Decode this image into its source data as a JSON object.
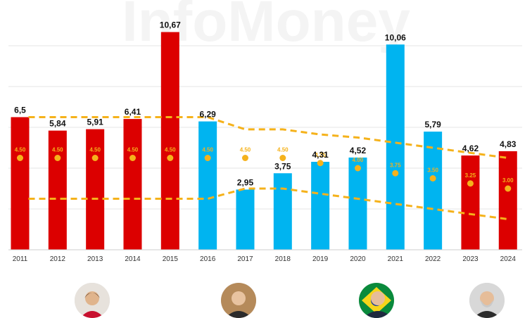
{
  "watermark": "InfoMoney",
  "colors": {
    "red": "#dc0000",
    "blue": "#00b4f0",
    "target": "#f5b21b",
    "grid": "#e6e6e6"
  },
  "chart_data": {
    "type": "bar",
    "title": "",
    "xlabel": "",
    "ylabel": "",
    "ylim": [
      0,
      11.4
    ],
    "grid": true,
    "categories": [
      "2011",
      "2012",
      "2013",
      "2014",
      "2015",
      "2016",
      "2017",
      "2018",
      "2019",
      "2020",
      "2021",
      "2022",
      "2023",
      "2024"
    ],
    "values": [
      6.5,
      5.84,
      5.91,
      6.41,
      10.67,
      6.29,
      2.95,
      3.75,
      4.31,
      4.52,
      10.06,
      5.79,
      4.62,
      4.83
    ],
    "value_labels": [
      "6,5",
      "5,84",
      "5,91",
      "6,41",
      "10,67",
      "6,29",
      "2,95",
      "3,75",
      "4,31",
      "4,52",
      "10,06",
      "5,79",
      "4,62",
      "4,83"
    ],
    "bar_colors": [
      "red",
      "red",
      "red",
      "red",
      "red",
      "blue",
      "blue",
      "blue",
      "blue",
      "blue",
      "blue",
      "blue",
      "red",
      "red"
    ],
    "target_values": [
      4.5,
      4.5,
      4.5,
      4.5,
      4.5,
      4.5,
      4.5,
      4.5,
      4.25,
      4.0,
      3.75,
      3.5,
      3.25,
      3.0
    ],
    "target_labels": [
      "4.50",
      "4.50",
      "4.50",
      "4.50",
      "4.50",
      "4.50",
      "4.50",
      "4.50",
      "4.25",
      "4.00",
      "3.75",
      "3.50",
      "3.25",
      "3.00"
    ],
    "upper_band": [
      6.5,
      6.5,
      6.5,
      6.5,
      6.5,
      6.5,
      5.9,
      5.9,
      5.65,
      5.5,
      5.25,
      5.0,
      4.75,
      4.5
    ],
    "lower_band": [
      2.5,
      2.5,
      2.5,
      2.5,
      2.5,
      2.5,
      3.0,
      3.0,
      2.75,
      2.5,
      2.25,
      2.0,
      1.75,
      1.5
    ]
  },
  "portraits": [
    "portrait-1",
    "portrait-2",
    "portrait-3",
    "portrait-4"
  ]
}
